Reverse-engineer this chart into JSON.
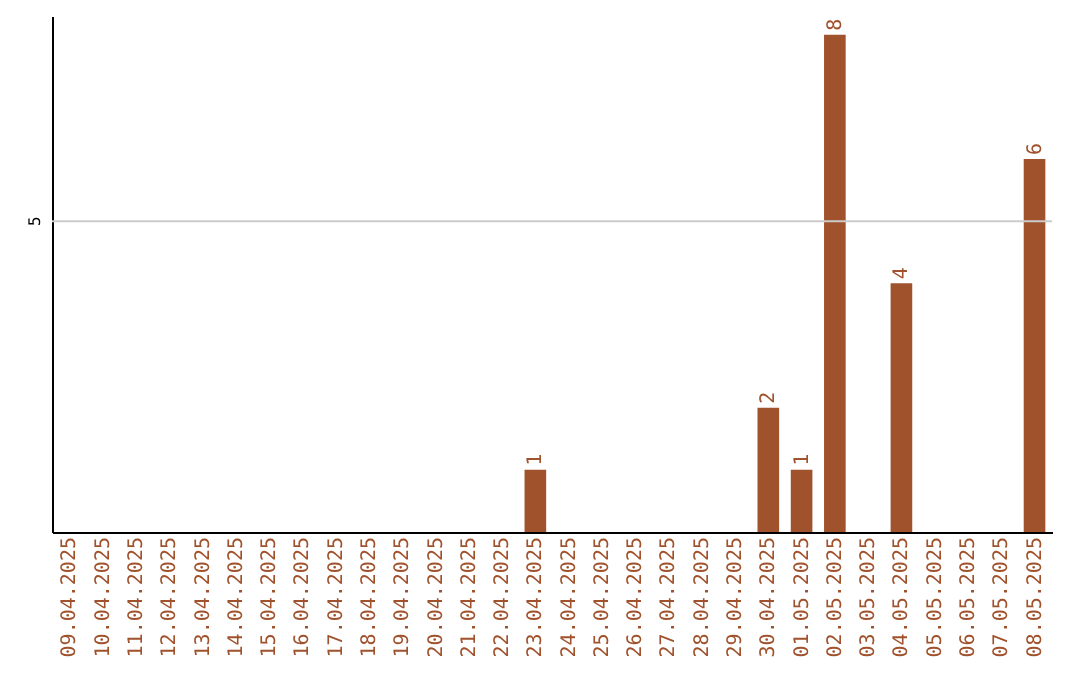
{
  "chart_data": {
    "type": "bar",
    "ylim": [
      0,
      8.3
    ],
    "categories": [
      "09.04.2025",
      "10.04.2025",
      "11.04.2025",
      "12.04.2025",
      "13.04.2025",
      "14.04.2025",
      "15.04.2025",
      "16.04.2025",
      "17.04.2025",
      "18.04.2025",
      "19.04.2025",
      "20.04.2025",
      "21.04.2025",
      "22.04.2025",
      "23.04.2025",
      "24.04.2025",
      "25.04.2025",
      "26.04.2025",
      "27.04.2025",
      "28.04.2025",
      "29.04.2025",
      "30.04.2025",
      "01.05.2025",
      "02.05.2025",
      "03.05.2025",
      "04.05.2025",
      "05.05.2025",
      "06.05.2025",
      "07.05.2025",
      "08.05.2025"
    ],
    "values": [
      null,
      null,
      null,
      null,
      null,
      null,
      null,
      null,
      null,
      null,
      null,
      null,
      null,
      null,
      1,
      null,
      null,
      null,
      null,
      null,
      null,
      2,
      1,
      8,
      null,
      4,
      null,
      null,
      null,
      6
    ],
    "data_labels": true,
    "color": "#a0522d",
    "ref_lines": [
      {
        "axis": "y",
        "value": 5,
        "label": "5",
        "color": "#cccccc"
      }
    ]
  }
}
